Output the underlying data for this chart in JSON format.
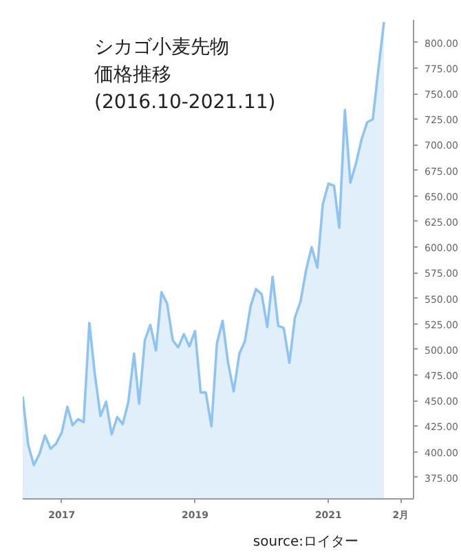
{
  "chart_data": {
    "type": "area",
    "title": "シカゴ小麦先物価格推移",
    "subtitle": "(2016.10-2021.11)",
    "annotations": [
      "source:ロイター"
    ],
    "x": [
      "2016-06",
      "2016-07",
      "2016-08",
      "2016-09",
      "2016-10",
      "2016-11",
      "2016-12",
      "2017-01",
      "2017-02",
      "2017-03",
      "2017-04",
      "2017-05",
      "2017-06",
      "2017-07",
      "2017-08",
      "2017-09",
      "2017-10",
      "2017-11",
      "2017-12",
      "2018-01",
      "2018-02",
      "2018-03",
      "2018-04",
      "2018-05",
      "2018-06",
      "2018-07",
      "2018-08",
      "2018-09",
      "2018-10",
      "2018-11",
      "2018-12",
      "2019-01",
      "2019-02",
      "2019-03",
      "2019-04",
      "2019-05",
      "2019-06",
      "2019-07",
      "2019-08",
      "2019-09",
      "2019-10",
      "2019-11",
      "2019-12",
      "2020-01",
      "2020-02",
      "2020-03",
      "2020-04",
      "2020-05",
      "2020-06",
      "2020-07",
      "2020-08",
      "2020-09",
      "2020-10",
      "2020-11",
      "2020-12",
      "2021-01",
      "2021-02",
      "2021-03",
      "2021-04",
      "2021-05",
      "2021-06",
      "2021-07",
      "2021-08",
      "2021-09",
      "2021-10",
      "2021-11"
    ],
    "series": [
      {
        "color": "#90c4f0",
        "values": [
          454,
          407,
          387,
          398,
          416,
          403,
          408,
          419,
          444,
          426,
          432,
          429,
          526,
          476,
          435,
          449,
          417,
          434,
          427,
          449,
          496,
          447,
          509,
          524,
          499,
          556,
          545,
          509,
          502,
          515,
          503,
          518,
          458,
          458,
          425,
          506,
          528,
          487,
          459,
          496,
          508,
          542,
          559,
          554,
          522,
          571,
          523,
          521,
          487,
          531,
          547,
          578,
          600,
          580,
          642,
          662,
          660,
          619,
          734,
          663,
          682,
          705,
          722,
          725,
          773,
          820
        ]
      }
    ],
    "xlim": [
      "2016-06-01",
      "2022-04-12"
    ],
    "ylim": [
      354,
      822
    ],
    "xticks": [
      {
        "value": "2017-01-01",
        "label": "2017"
      },
      {
        "value": "2019-01-01",
        "label": "2019"
      },
      {
        "value": "2021-01-01",
        "label": "2021"
      },
      {
        "value": "2022-02-01",
        "label": "2月"
      }
    ],
    "yticks": [
      {
        "value": 375,
        "label": "375.00"
      },
      {
        "value": 400,
        "label": "400.00"
      },
      {
        "value": 425,
        "label": "425.00"
      },
      {
        "value": 450,
        "label": "450.00"
      },
      {
        "value": 475,
        "label": "475.00"
      },
      {
        "value": 500,
        "label": "500.00"
      },
      {
        "value": 525,
        "label": "525.00"
      },
      {
        "value": 550,
        "label": "550.00"
      },
      {
        "value": 575,
        "label": "575.00"
      },
      {
        "value": 600,
        "label": "600.00"
      },
      {
        "value": 625,
        "label": "625.00"
      },
      {
        "value": 650,
        "label": "650.00"
      },
      {
        "value": 675,
        "label": "675.00"
      },
      {
        "value": 700,
        "label": "700.00"
      },
      {
        "value": 725,
        "label": "725.00"
      },
      {
        "value": 750,
        "label": "750.00"
      },
      {
        "value": 775,
        "label": "775.00"
      },
      {
        "value": 800,
        "label": "800.00"
      }
    ],
    "grid": false
  }
}
